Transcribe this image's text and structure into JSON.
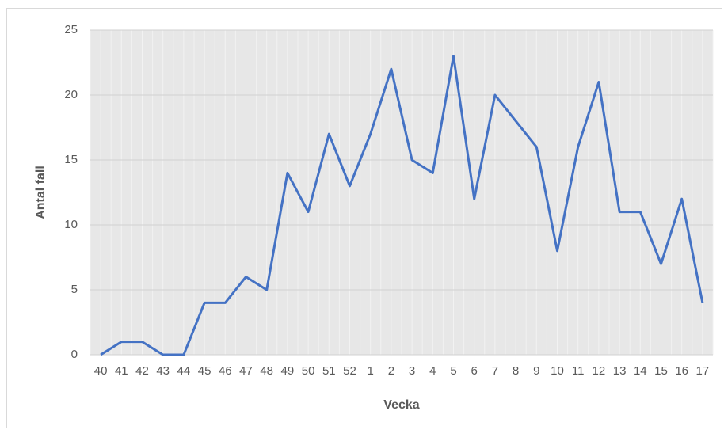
{
  "chart_data": {
    "type": "line",
    "x_label": "Vecka",
    "y_label": "Antal fall",
    "categories": [
      "40",
      "41",
      "42",
      "43",
      "44",
      "45",
      "46",
      "47",
      "48",
      "49",
      "50",
      "51",
      "52",
      "1",
      "2",
      "3",
      "4",
      "5",
      "6",
      "7",
      "8",
      "9",
      "10",
      "11",
      "12",
      "13",
      "14",
      "15",
      "16",
      "17"
    ],
    "series": [
      {
        "name": "Antal fall",
        "color": "#4472c4",
        "values": [
          0,
          1,
          1,
          0,
          0,
          4,
          4,
          6,
          5,
          14,
          11,
          17,
          13,
          17,
          22,
          15,
          14,
          23,
          12,
          20,
          18,
          16,
          8,
          16,
          21,
          11,
          11,
          7,
          12,
          4
        ]
      }
    ],
    "ylim": [
      0,
      25
    ],
    "yticks": [
      0,
      5,
      10,
      15,
      20,
      25
    ],
    "grid": true
  }
}
